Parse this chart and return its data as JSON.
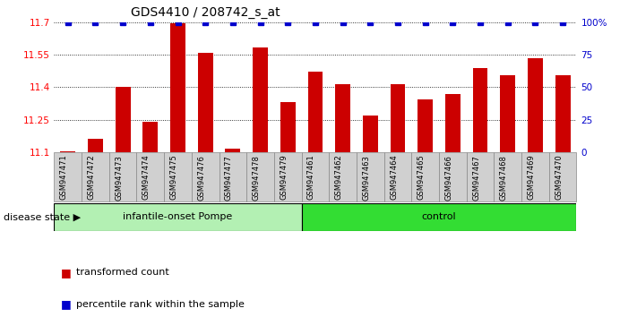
{
  "title": "GDS4410 / 208742_s_at",
  "samples": [
    "GSM947471",
    "GSM947472",
    "GSM947473",
    "GSM947474",
    "GSM947475",
    "GSM947476",
    "GSM947477",
    "GSM947478",
    "GSM947479",
    "GSM947461",
    "GSM947462",
    "GSM947463",
    "GSM947464",
    "GSM947465",
    "GSM947466",
    "GSM947467",
    "GSM947468",
    "GSM947469",
    "GSM947470"
  ],
  "bar_values": [
    11.105,
    11.16,
    11.4,
    11.24,
    11.695,
    11.56,
    11.115,
    11.585,
    11.33,
    11.47,
    11.415,
    11.27,
    11.415,
    11.345,
    11.37,
    11.49,
    11.455,
    11.535,
    11.455
  ],
  "percentile_values": [
    100,
    100,
    100,
    100,
    100,
    100,
    100,
    100,
    100,
    100,
    100,
    100,
    100,
    100,
    100,
    100,
    100,
    100,
    100
  ],
  "bar_color": "#cc0000",
  "percentile_color": "#0000cc",
  "ylim_left": [
    11.1,
    11.7
  ],
  "ylim_right": [
    0,
    100
  ],
  "yticks_left": [
    11.1,
    11.25,
    11.4,
    11.55,
    11.7
  ],
  "ytick_labels_left": [
    "11.1",
    "11.25",
    "11.4",
    "11.55",
    "11.7"
  ],
  "yticks_right": [
    0,
    25,
    50,
    75,
    100
  ],
  "ytick_labels_right": [
    "0",
    "25",
    "50",
    "75",
    "100%"
  ],
  "group1_label": "infantile-onset Pompe",
  "group2_label": "control",
  "group1_count": 9,
  "group2_count": 10,
  "disease_state_label": "disease state",
  "legend_bar_label": "transformed count",
  "legend_pct_label": "percentile rank within the sample",
  "bg_color": "#ffffff",
  "group1_color": "#b3f0b3",
  "group2_color": "#33dd33",
  "xticklabel_bg": "#d0d0d0",
  "title_fontsize": 10,
  "tick_fontsize": 7.5,
  "label_fontsize": 8
}
